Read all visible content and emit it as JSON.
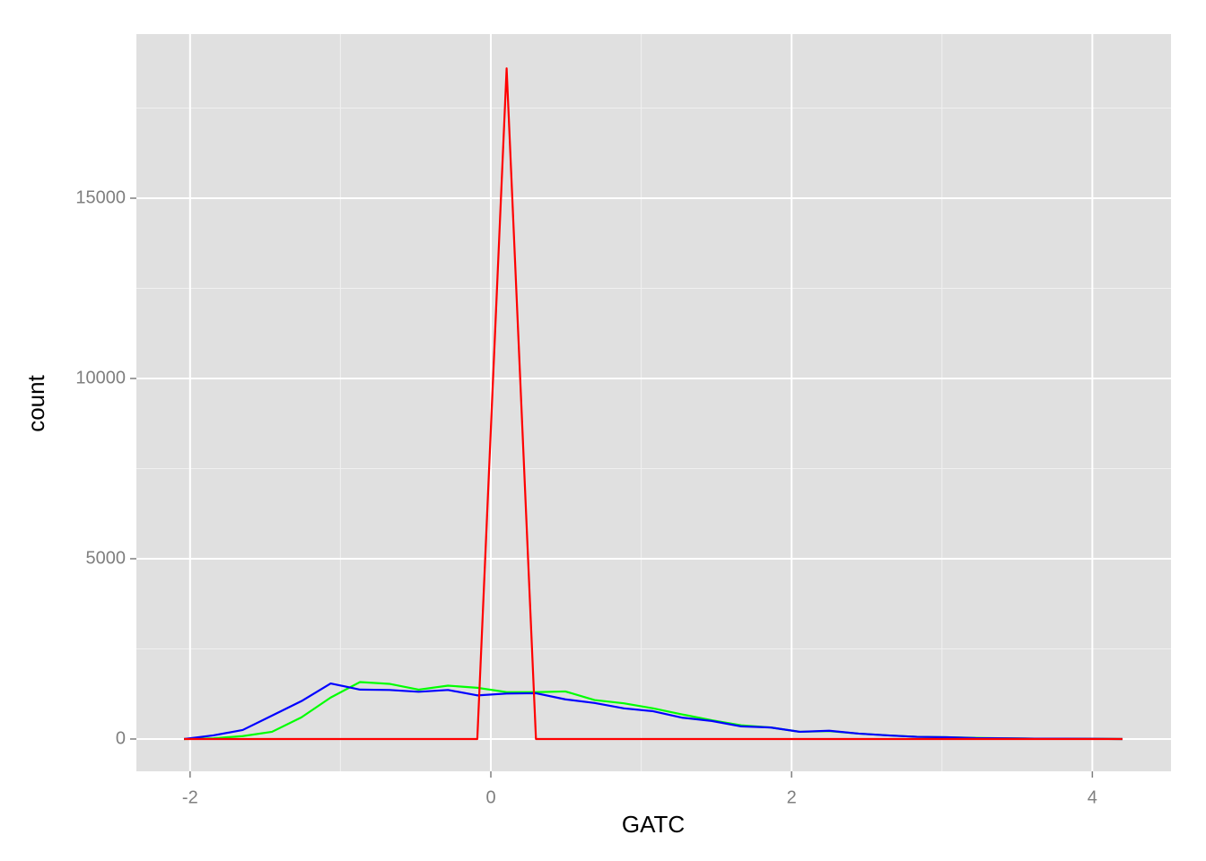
{
  "chart_data": {
    "type": "line",
    "x_label": "GATC",
    "y_label": "count",
    "x": [
      -2.04,
      -1.845,
      -1.65,
      -1.455,
      -1.26,
      -1.065,
      -0.87,
      -0.675,
      -0.48,
      -0.285,
      -0.09,
      0.105,
      0.3,
      0.495,
      0.69,
      0.885,
      1.08,
      1.275,
      1.47,
      1.665,
      1.86,
      2.055,
      2.25,
      2.445,
      2.64,
      2.835,
      3.03,
      3.225,
      3.42,
      3.615,
      3.81,
      4.005,
      4.2
    ],
    "series": [
      {
        "color": "#00ff00",
        "values": [
          0,
          20,
          80,
          200,
          600,
          1150,
          1580,
          1530,
          1370,
          1480,
          1420,
          1300,
          1300,
          1320,
          1080,
          990,
          850,
          680,
          520,
          380,
          320,
          200,
          220,
          150,
          100,
          60,
          50,
          30,
          20,
          10,
          10,
          5,
          0
        ]
      },
      {
        "color": "#0000ff",
        "values": [
          0,
          100,
          250,
          650,
          1050,
          1540,
          1370,
          1360,
          1310,
          1360,
          1210,
          1260,
          1270,
          1100,
          1000,
          850,
          770,
          590,
          500,
          350,
          320,
          200,
          230,
          150,
          100,
          60,
          50,
          25,
          20,
          10,
          10,
          5,
          0
        ]
      },
      {
        "color": "#ff0000",
        "values": [
          0,
          0,
          0,
          0,
          0,
          0,
          0,
          0,
          0,
          0,
          0,
          18600,
          0,
          0,
          0,
          0,
          0,
          0,
          0,
          0,
          0,
          0,
          0,
          0,
          0,
          0,
          0,
          0,
          0,
          0,
          0,
          0,
          0
        ]
      }
    ],
    "xlim": [
      -2.357,
      4.523
    ],
    "ylim": [
      -896,
      19552
    ],
    "xticks": [
      -2,
      0,
      2,
      4
    ],
    "yticks": [
      0,
      5000,
      10000,
      15000
    ],
    "x_minor_grid": [
      -1,
      1,
      3
    ],
    "y_minor_grid": [
      2500,
      7500,
      12500,
      17500
    ],
    "grid": true,
    "panel_color": "#e0e0e0"
  }
}
